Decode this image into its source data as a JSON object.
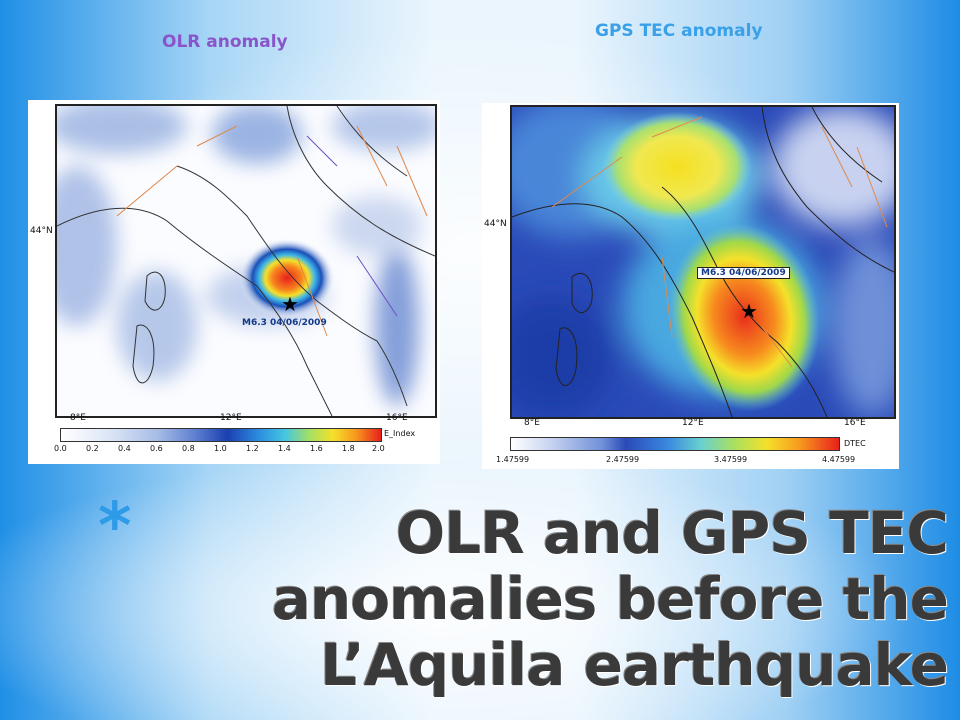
{
  "labels": {
    "olr": "OLR anomaly",
    "gps": "GPS TEC anomaly"
  },
  "colors": {
    "olr_label": "#8a55c9",
    "gps_label": "#3aa0e8",
    "headline": "#3a3a3a",
    "bullet": "#2e9be8"
  },
  "olr_map": {
    "lat_tick": "44°N",
    "lon_ticks": [
      "8°E",
      "12°E",
      "16°E"
    ],
    "quake_label": "M6.3 04/06/2009",
    "colorbar_title": "E_Index",
    "colorbar_ticks": [
      "0.0",
      "0.2",
      "0.4",
      "0.6",
      "0.8",
      "1.0",
      "1.2",
      "1.4",
      "1.6",
      "1.8",
      "2.0"
    ]
  },
  "gps_map": {
    "lat_tick": "44°N",
    "lon_ticks": [
      "8°E",
      "12°E",
      "16°E"
    ],
    "quake_label": "M6.3 04/06/2009",
    "colorbar_title": "DTEC",
    "colorbar_ticks": [
      "1.47599",
      "2.47599",
      "3.47599",
      "4.47599"
    ]
  },
  "title": {
    "bullet": "*",
    "text": "OLR and GPS TEC anomalies before the L’Aquila earthquake"
  }
}
